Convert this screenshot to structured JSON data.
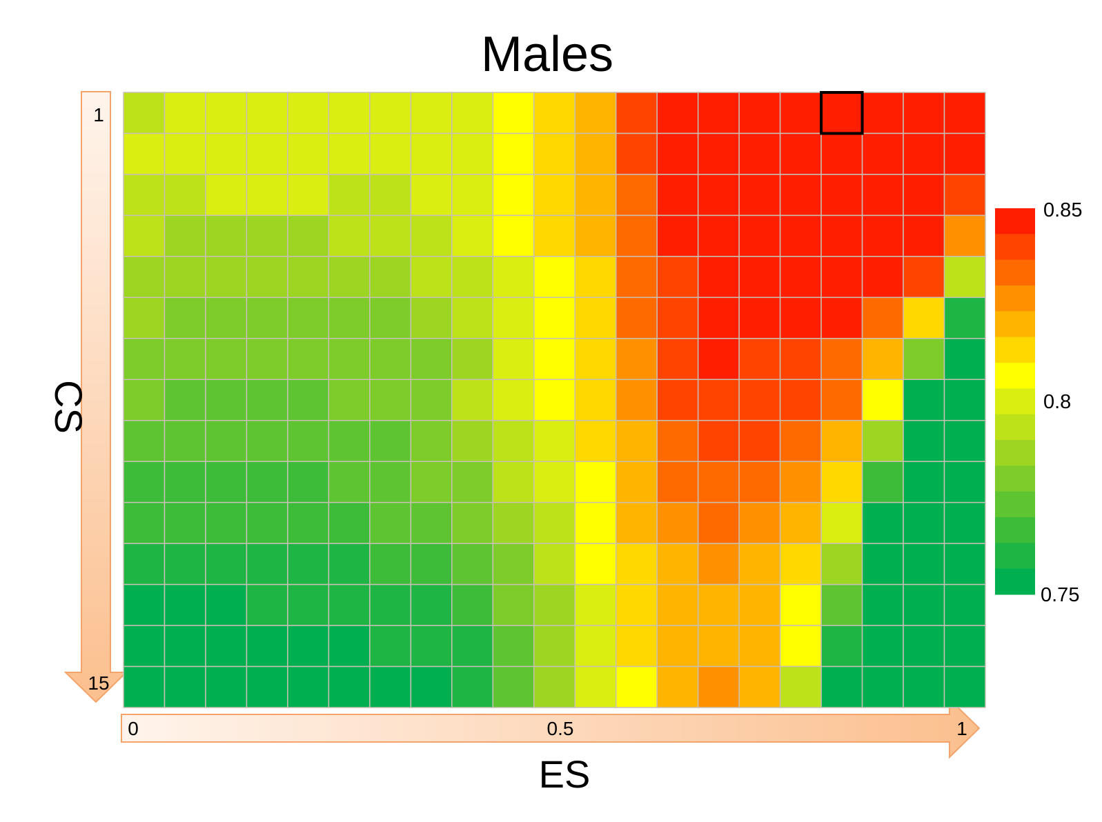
{
  "chart_data": {
    "type": "heatmap",
    "title": "Males",
    "xlabel": "ES",
    "ylabel": "CS",
    "x_ticks": [
      "0",
      "0.5",
      "1"
    ],
    "y_ticks": [
      "1",
      "15"
    ],
    "x_range": [
      0,
      1
    ],
    "y_range": [
      1,
      15
    ],
    "n_cols": 21,
    "n_rows": 15,
    "colorbar": {
      "min": 0.75,
      "max": 0.85,
      "ticks": [
        "0.85",
        "0.8",
        "0.75"
      ],
      "tick_values": [
        0.85,
        0.8,
        0.75
      ],
      "levels": 15,
      "colors_low_to_high": [
        "#00b050",
        "#1eb545",
        "#3dbc3a",
        "#5ec432",
        "#7ecc2a",
        "#9dd622",
        "#bee21a",
        "#dbee12",
        "#ffff00",
        "#ffd800",
        "#ffb400",
        "#ff9000",
        "#ff6a00",
        "#ff4400",
        "#ff1e00"
      ]
    },
    "highlighted_cell": {
      "row": 1,
      "col": 18
    },
    "values": [
      [
        0.795,
        0.798,
        0.8,
        0.8,
        0.798,
        0.797,
        0.798,
        0.797,
        0.801,
        0.809,
        0.815,
        0.825,
        0.84,
        0.85,
        0.85,
        0.85,
        0.85,
        0.85,
        0.85,
        0.85,
        0.85
      ],
      [
        0.798,
        0.798,
        0.8,
        0.8,
        0.799,
        0.798,
        0.799,
        0.799,
        0.802,
        0.81,
        0.813,
        0.822,
        0.84,
        0.849,
        0.85,
        0.85,
        0.85,
        0.85,
        0.85,
        0.85,
        0.85
      ],
      [
        0.796,
        0.796,
        0.797,
        0.797,
        0.797,
        0.796,
        0.796,
        0.799,
        0.803,
        0.809,
        0.814,
        0.82,
        0.838,
        0.849,
        0.849,
        0.85,
        0.85,
        0.85,
        0.85,
        0.85,
        0.845
      ],
      [
        0.792,
        0.789,
        0.789,
        0.787,
        0.788,
        0.791,
        0.79,
        0.792,
        0.797,
        0.806,
        0.813,
        0.819,
        0.836,
        0.848,
        0.849,
        0.849,
        0.85,
        0.85,
        0.85,
        0.85,
        0.826
      ],
      [
        0.789,
        0.787,
        0.785,
        0.784,
        0.784,
        0.786,
        0.786,
        0.79,
        0.792,
        0.801,
        0.809,
        0.817,
        0.836,
        0.846,
        0.849,
        0.849,
        0.849,
        0.849,
        0.848,
        0.84,
        0.79
      ],
      [
        0.786,
        0.782,
        0.782,
        0.78,
        0.779,
        0.782,
        0.781,
        0.784,
        0.791,
        0.801,
        0.809,
        0.817,
        0.833,
        0.845,
        0.848,
        0.848,
        0.849,
        0.848,
        0.838,
        0.812,
        0.76
      ],
      [
        0.781,
        0.779,
        0.777,
        0.776,
        0.776,
        0.776,
        0.779,
        0.78,
        0.789,
        0.798,
        0.807,
        0.814,
        0.83,
        0.844,
        0.847,
        0.846,
        0.844,
        0.839,
        0.825,
        0.781,
        0.75
      ],
      [
        0.776,
        0.774,
        0.772,
        0.772,
        0.772,
        0.775,
        0.775,
        0.78,
        0.79,
        0.797,
        0.805,
        0.812,
        0.828,
        0.842,
        0.845,
        0.843,
        0.841,
        0.833,
        0.805,
        0.75,
        0.75
      ],
      [
        0.773,
        0.77,
        0.769,
        0.769,
        0.77,
        0.773,
        0.774,
        0.776,
        0.783,
        0.794,
        0.803,
        0.812,
        0.825,
        0.839,
        0.842,
        0.84,
        0.837,
        0.822,
        0.784,
        0.75,
        0.75
      ],
      [
        0.767,
        0.766,
        0.765,
        0.765,
        0.766,
        0.77,
        0.772,
        0.776,
        0.781,
        0.79,
        0.801,
        0.81,
        0.822,
        0.835,
        0.838,
        0.835,
        0.831,
        0.811,
        0.766,
        0.75,
        0.75
      ],
      [
        0.762,
        0.762,
        0.761,
        0.761,
        0.762,
        0.765,
        0.768,
        0.772,
        0.775,
        0.786,
        0.795,
        0.807,
        0.818,
        0.83,
        0.833,
        0.83,
        0.823,
        0.8,
        0.75,
        0.75,
        0.75
      ],
      [
        0.756,
        0.756,
        0.756,
        0.757,
        0.757,
        0.76,
        0.762,
        0.765,
        0.768,
        0.781,
        0.792,
        0.804,
        0.815,
        0.825,
        0.828,
        0.825,
        0.817,
        0.783,
        0.75,
        0.75,
        0.75
      ],
      [
        0.753,
        0.753,
        0.753,
        0.754,
        0.754,
        0.756,
        0.757,
        0.76,
        0.762,
        0.776,
        0.789,
        0.802,
        0.812,
        0.821,
        0.825,
        0.821,
        0.81,
        0.769,
        0.75,
        0.75,
        0.75
      ],
      [
        0.751,
        0.751,
        0.751,
        0.752,
        0.752,
        0.753,
        0.754,
        0.756,
        0.758,
        0.773,
        0.786,
        0.8,
        0.811,
        0.82,
        0.824,
        0.819,
        0.804,
        0.757,
        0.75,
        0.75,
        0.75
      ],
      [
        0.75,
        0.75,
        0.75,
        0.751,
        0.751,
        0.751,
        0.752,
        0.753,
        0.755,
        0.77,
        0.783,
        0.798,
        0.809,
        0.822,
        0.826,
        0.82,
        0.795,
        0.752,
        0.75,
        0.75,
        0.75
      ]
    ]
  }
}
